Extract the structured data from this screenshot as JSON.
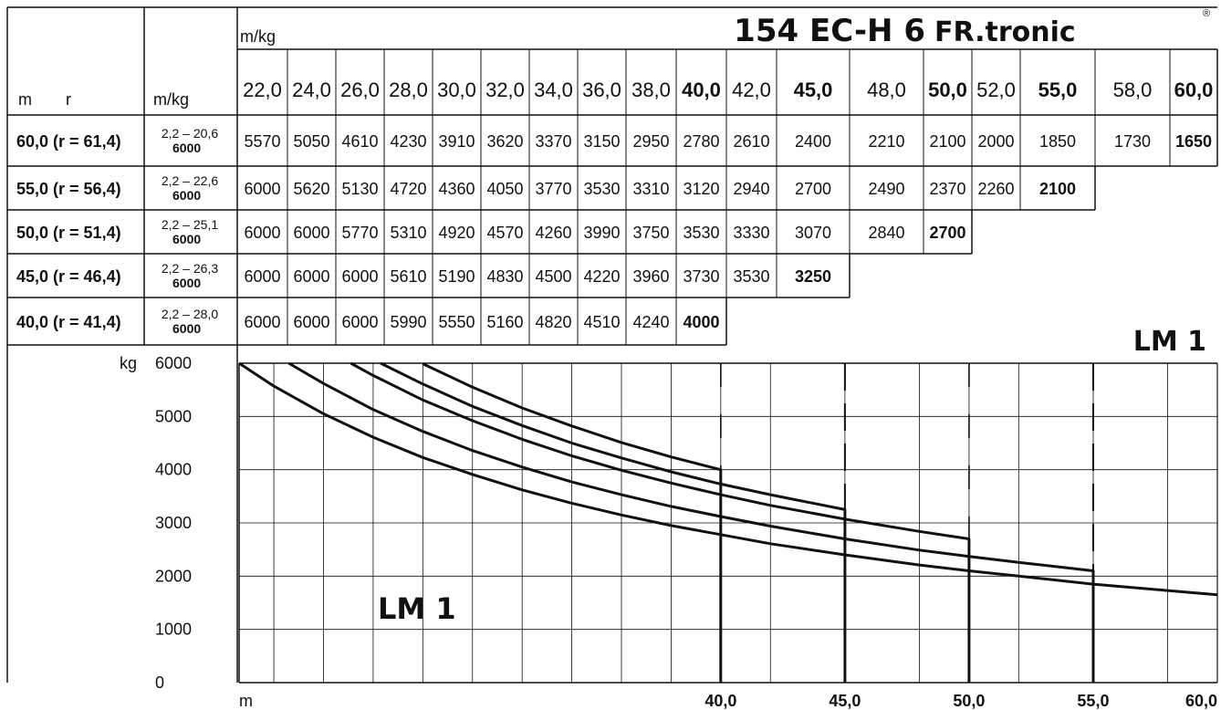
{
  "title": "154 EC-H 6",
  "brand": "FR.tronic",
  "registered": "®",
  "table": {
    "unit_top": "m/kg",
    "col_m": "m",
    "col_r": "r",
    "col_mkg": "m/kg",
    "radii": [
      "22,0",
      "24,0",
      "26,0",
      "28,0",
      "30,0",
      "32,0",
      "34,0",
      "36,0",
      "38,0",
      "40,0",
      "42,0",
      "45,0",
      "48,0",
      "50,0",
      "52,0",
      "55,0",
      "58,0",
      "60,0"
    ],
    "bold_radii": [
      "40,0",
      "45,0",
      "50,0",
      "55,0",
      "60,0"
    ],
    "rows": [
      {
        "label": "60,0  (r = 61,4)",
        "range": "2,2 – 20,6",
        "max": "6000",
        "values": [
          "5570",
          "5050",
          "4610",
          "4230",
          "3910",
          "3620",
          "3370",
          "3150",
          "2950",
          "2780",
          "2610",
          "2400",
          "2210",
          "2100",
          "2000",
          "1850",
          "1730",
          "1650"
        ]
      },
      {
        "label": "55,0  (r = 56,4)",
        "range": "2,2 – 22,6",
        "max": "6000",
        "values": [
          "6000",
          "5620",
          "5130",
          "4720",
          "4360",
          "4050",
          "3770",
          "3530",
          "3310",
          "3120",
          "2940",
          "2700",
          "2490",
          "2370",
          "2260",
          "2100"
        ]
      },
      {
        "label": "50,0  (r = 51,4)",
        "range": "2,2 – 25,1",
        "max": "6000",
        "values": [
          "6000",
          "6000",
          "5770",
          "5310",
          "4920",
          "4570",
          "4260",
          "3990",
          "3750",
          "3530",
          "3330",
          "3070",
          "2840",
          "2700"
        ]
      },
      {
        "label": "45,0  (r = 46,4)",
        "range": "2,2 – 26,3",
        "max": "6000",
        "values": [
          "6000",
          "6000",
          "6000",
          "5610",
          "5190",
          "4830",
          "4500",
          "4220",
          "3960",
          "3730",
          "3530",
          "3250"
        ]
      },
      {
        "label": "40,0  (r = 41,4)",
        "range": "2,2 – 28,0",
        "max": "6000",
        "values": [
          "6000",
          "6000",
          "6000",
          "5990",
          "5550",
          "5160",
          "4820",
          "4510",
          "4240",
          "4000"
        ]
      }
    ],
    "lm_label": "LM 1"
  },
  "chart_data": {
    "type": "line",
    "title": "",
    "xlabel": "m",
    "ylabel": "kg",
    "xlim": [
      20.6,
      60.0
    ],
    "ylim": [
      0,
      6000
    ],
    "y_ticks": [
      "0",
      "1000",
      "2000",
      "3000",
      "4000",
      "5000",
      "6000"
    ],
    "x_tick_labels": [
      "40,0",
      "45,0",
      "50,0",
      "55,0",
      "60,0"
    ],
    "x_tick_values": [
      40,
      45,
      50,
      55,
      60
    ],
    "grid": true,
    "annotation": "LM 1",
    "series": [
      {
        "jib": 60,
        "x": [
          20.6,
          22,
          24,
          26,
          28,
          30,
          32,
          34,
          36,
          38,
          40,
          42,
          45,
          48,
          50,
          52,
          55,
          58,
          60
        ],
        "y": [
          6000,
          5570,
          5050,
          4610,
          4230,
          3910,
          3620,
          3370,
          3150,
          2950,
          2780,
          2610,
          2400,
          2210,
          2100,
          2000,
          1850,
          1730,
          1650
        ]
      },
      {
        "jib": 55,
        "x": [
          22.6,
          24,
          26,
          28,
          30,
          32,
          34,
          36,
          38,
          40,
          42,
          45,
          48,
          50,
          52,
          55
        ],
        "y": [
          6000,
          5620,
          5130,
          4720,
          4360,
          4050,
          3770,
          3530,
          3310,
          3120,
          2940,
          2700,
          2490,
          2370,
          2260,
          2100
        ]
      },
      {
        "jib": 50,
        "x": [
          25.1,
          26,
          28,
          30,
          32,
          34,
          36,
          38,
          40,
          42,
          45,
          48,
          50
        ],
        "y": [
          6000,
          5770,
          5310,
          4920,
          4570,
          4260,
          3990,
          3750,
          3530,
          3330,
          3070,
          2840,
          2700
        ]
      },
      {
        "jib": 45,
        "x": [
          26.3,
          28,
          30,
          32,
          34,
          36,
          38,
          40,
          42,
          45
        ],
        "y": [
          6000,
          5610,
          5190,
          4830,
          4500,
          4220,
          3960,
          3730,
          3530,
          3250
        ]
      },
      {
        "jib": 40,
        "x": [
          28.0,
          30,
          32,
          34,
          36,
          38,
          40
        ],
        "y": [
          5990,
          5550,
          5160,
          4820,
          4510,
          4240,
          4000
        ]
      }
    ]
  }
}
